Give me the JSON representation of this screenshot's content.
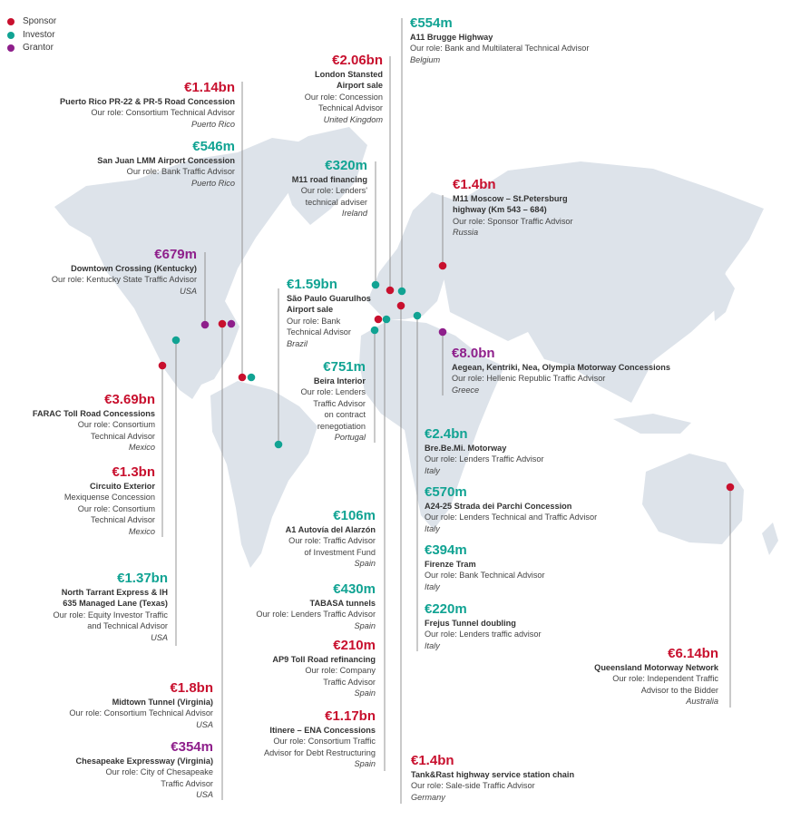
{
  "colors": {
    "sponsor": "#c8102e",
    "investor": "#11a393",
    "grantor": "#8e1f8b",
    "map": "#dde3ea",
    "line": "#8a8a8a"
  },
  "legend": [
    {
      "label": "Sponsor",
      "type": "sponsor"
    },
    {
      "label": "Investor",
      "type": "investor"
    },
    {
      "label": "Grantor",
      "type": "grantor"
    }
  ],
  "projects": [
    {
      "id": "puerto-rico-pr22",
      "type": "sponsor",
      "amount": "€1.14bn",
      "name": [
        "Puerto Rico PR-22 & PR-5 Road Concession"
      ],
      "role": [
        "Our role: Consortium Technical Advisor"
      ],
      "country": "Puerto Rico"
    },
    {
      "id": "san-juan-lmm",
      "type": "investor",
      "amount": "€546m",
      "name": [
        "San Juan LMM Airport Concession"
      ],
      "role": [
        "Our role: Bank Traffic Advisor"
      ],
      "country": "Puerto Rico"
    },
    {
      "id": "downtown-crossing",
      "type": "grantor",
      "amount": "€679m",
      "name": [
        "Downtown Crossing (Kentucky)"
      ],
      "role": [
        "Our role: Kentucky State Traffic Advisor"
      ],
      "country": "USA"
    },
    {
      "id": "farac",
      "type": "sponsor",
      "amount": "€3.69bn",
      "name": [
        "FARAC Toll Road Concessions"
      ],
      "role": [
        "Our role: Consortium",
        "Technical Advisor"
      ],
      "country": "Mexico"
    },
    {
      "id": "circuito-exterior",
      "type": "sponsor",
      "amount": "€1.3bn",
      "name": [
        "Circuito Exterior"
      ],
      "role": [
        "Mexiquense Concession",
        "Our role: Consortium",
        "Technical Advisor"
      ],
      "country": "Mexico"
    },
    {
      "id": "north-tarrant",
      "type": "investor",
      "amount": "€1.37bn",
      "name": [
        "North Tarrant Express & IH",
        "635 Managed Lane (Texas)"
      ],
      "role": [
        "Our role: Equity Investor Traffic",
        "and Technical Advisor"
      ],
      "country": "USA"
    },
    {
      "id": "midtown-tunnel",
      "type": "sponsor",
      "amount": "€1.8bn",
      "name": [
        "Midtown Tunnel (Virginia)"
      ],
      "role": [
        "Our role: Consortium Technical Advisor"
      ],
      "country": "USA"
    },
    {
      "id": "chesapeake",
      "type": "grantor",
      "amount": "€354m",
      "name": [
        "Chesapeake Expressway (Virginia)"
      ],
      "role": [
        "Our role: City of Chesapeake",
        "Traffic Advisor"
      ],
      "country": "USA"
    },
    {
      "id": "london-stansted",
      "type": "sponsor",
      "amount": "€2.06bn",
      "name": [
        "London Stansted",
        "Airport sale"
      ],
      "role": [
        "Our role: Concession",
        "Technical Advisor"
      ],
      "country": "United Kingdom"
    },
    {
      "id": "m11-ireland",
      "type": "investor",
      "amount": "€320m",
      "name": [
        "M11 road financing"
      ],
      "role": [
        "Our role: Lenders'",
        "technical adviser"
      ],
      "country": "Ireland"
    },
    {
      "id": "sao-paulo",
      "type": "investor",
      "amount": "€1.59bn",
      "name": [
        "São Paulo Guarulhos",
        "Airport sale"
      ],
      "role": [
        "Our role: Bank",
        "Technical Advisor"
      ],
      "country": "Brazil"
    },
    {
      "id": "beira-interior",
      "type": "investor",
      "amount": "€751m",
      "name": [
        "Beira Interior"
      ],
      "role": [
        "Our role: Lenders",
        "Traffic Advisor",
        "on contract",
        "renegotiation"
      ],
      "country": "Portugal"
    },
    {
      "id": "a1-autovia",
      "type": "investor",
      "amount": "€106m",
      "name": [
        "A1 Autovía del Alarzón"
      ],
      "role": [
        "Our role: Traffic Advisor",
        "of Investment Fund"
      ],
      "country": "Spain"
    },
    {
      "id": "tabasa",
      "type": "investor",
      "amount": "€430m",
      "name": [
        "TABASA tunnels"
      ],
      "role": [
        "Our role: Lenders Traffic Advisor"
      ],
      "country": "Spain"
    },
    {
      "id": "ap9",
      "type": "sponsor",
      "amount": "€210m",
      "name": [
        "AP9 Toll Road refinancing"
      ],
      "role": [
        "Our role: Company",
        "Traffic Advisor"
      ],
      "country": "Spain"
    },
    {
      "id": "itinere",
      "type": "sponsor",
      "amount": "€1.17bn",
      "name": [
        "Itinere – ENA Concessions"
      ],
      "role": [
        "Our role: Consortium Traffic",
        "Advisor for Debt Restructuring"
      ],
      "country": "Spain"
    },
    {
      "id": "a11-brugge",
      "type": "investor",
      "amount": "€554m",
      "name": [
        "A11 Brugge Highway"
      ],
      "role": [
        "Our role: Bank and Multilateral Technical Advisor"
      ],
      "country": "Belgium"
    },
    {
      "id": "m11-moscow",
      "type": "sponsor",
      "amount": "€1.4bn",
      "name": [
        "M11 Moscow – St.Petersburg",
        "highway (Km 543 – 684)"
      ],
      "role": [
        "Our role: Sponsor Traffic Advisor"
      ],
      "country": "Russia"
    },
    {
      "id": "aegean",
      "type": "grantor",
      "amount": "€8.0bn",
      "name": [
        "Aegean, Kentriki, Nea, Olympia Motorway Concessions"
      ],
      "role": [
        "Our role: Hellenic Republic Traffic Advisor"
      ],
      "country": "Greece"
    },
    {
      "id": "brebemi",
      "type": "investor",
      "amount": "€2.4bn",
      "name": [
        "Bre.Be.Mi. Motorway"
      ],
      "role": [
        "Our role: Lenders Traffic Advisor"
      ],
      "country": "Italy"
    },
    {
      "id": "a24-25",
      "type": "investor",
      "amount": "€570m",
      "name": [
        "A24-25 Strada dei Parchi Concession"
      ],
      "role": [
        "Our role: Lenders Technical and Traffic Advisor"
      ],
      "country": "Italy"
    },
    {
      "id": "firenze-tram",
      "type": "investor",
      "amount": "€394m",
      "name": [
        "Firenze Tram"
      ],
      "role": [
        "Our role: Bank Technical Advisor"
      ],
      "country": "Italy"
    },
    {
      "id": "frejus",
      "type": "investor",
      "amount": "€220m",
      "name": [
        "Frejus Tunnel doubling"
      ],
      "role": [
        "Our role: Lenders traffic advisor"
      ],
      "country": "Italy"
    },
    {
      "id": "queensland",
      "type": "sponsor",
      "amount": "€6.14bn",
      "name": [
        "Queensland Motorway Network"
      ],
      "role": [
        "Our role: Independent Traffic",
        "Advisor to the Bidder"
      ],
      "country": "Australia"
    },
    {
      "id": "tank-rast",
      "type": "sponsor",
      "amount": "€1.4bn",
      "name": [
        "Tank&Rast highway service station chain"
      ],
      "role": [
        "Our role: Sale-side Traffic Advisor"
      ],
      "country": "Germany"
    }
  ]
}
